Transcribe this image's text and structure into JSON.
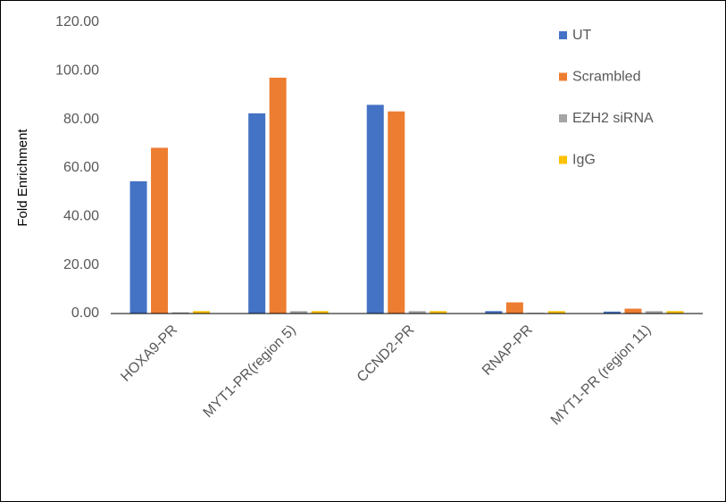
{
  "chart_data": {
    "type": "bar",
    "title": "",
    "xlabel": "",
    "ylabel": "Fold Enrichment",
    "ylim": [
      0,
      120
    ],
    "yticks": [
      "0.00",
      "20.00",
      "40.00",
      "60.00",
      "80.00",
      "100.00",
      "120.00"
    ],
    "ytick_values": [
      0,
      20,
      40,
      60,
      80,
      100,
      120
    ],
    "grid": false,
    "legend_position": "top-right",
    "categories": [
      "HOXA9-PR",
      "MYT1-PR(region 5)",
      "CCND2-PR",
      "RNAP-PR",
      "MYT1-PR (region 11)"
    ],
    "series": [
      {
        "name": "UT",
        "color": "#4472C4",
        "values": [
          54.5,
          82.5,
          86.0,
          1.0,
          0.8
        ]
      },
      {
        "name": "Scrambled",
        "color": "#ED7D31",
        "values": [
          68.3,
          97.2,
          83.3,
          4.6,
          2.0
        ]
      },
      {
        "name": "EZH2 siRNA",
        "color": "#A5A5A5",
        "values": [
          0.5,
          1.0,
          1.0,
          0.3,
          1.0
        ]
      },
      {
        "name": "IgG",
        "color": "#FFC000",
        "values": [
          1.0,
          1.0,
          1.0,
          1.0,
          1.0
        ]
      }
    ]
  }
}
